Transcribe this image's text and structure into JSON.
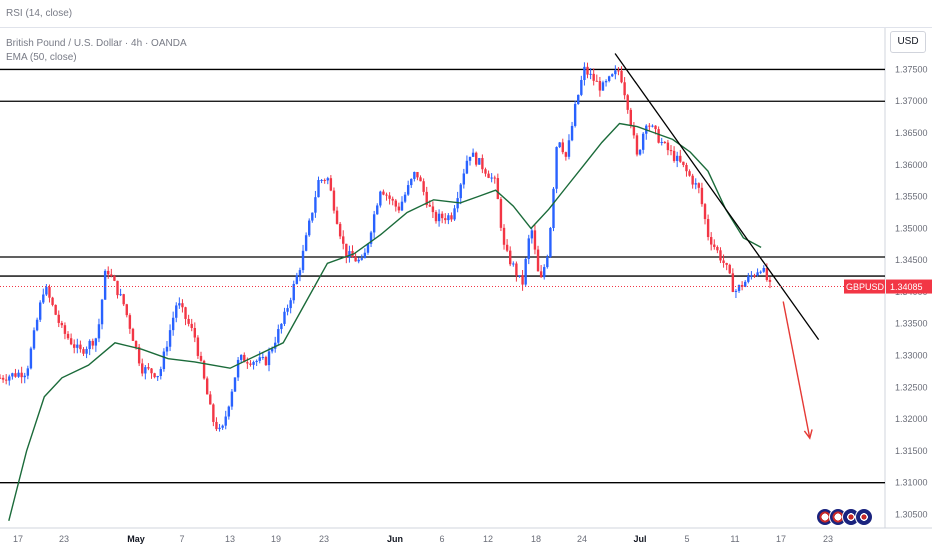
{
  "rsi_label": "RSI (14, close)",
  "legend": {
    "symbol_line": "British Pound / U.S. Dollar · 4h · OANDA",
    "ema_line": "EMA (50, close)"
  },
  "currency_button": "USD",
  "price_tag": {
    "symbol": "GBPUSD",
    "price": "1.34085"
  },
  "colors": {
    "up_candle": "#2962ff",
    "down_candle": "#f23645",
    "ema": "#1b6b3a",
    "trend_line": "#000000",
    "arrow": "#e53935",
    "price_tag_bg": "#f23645"
  },
  "chart_data": {
    "type": "candlestick",
    "symbol": "GBPUSD",
    "timeframe": "4h",
    "y_axis": {
      "ticks": [
        "1.37500",
        "1.37000",
        "1.36500",
        "1.36000",
        "1.35500",
        "1.35000",
        "1.34500",
        "1.34000",
        "1.33500",
        "1.33000",
        "1.32500",
        "1.32000",
        "1.31500",
        "1.31000",
        "1.30500"
      ],
      "range": [
        1.3035,
        1.379
      ]
    },
    "x_axis": {
      "ticks": [
        {
          "label": "17",
          "bold": false
        },
        {
          "label": "23",
          "bold": false
        },
        {
          "label": "May",
          "bold": true
        },
        {
          "label": "7",
          "bold": false
        },
        {
          "label": "13",
          "bold": false
        },
        {
          "label": "19",
          "bold": false
        },
        {
          "label": "23",
          "bold": false
        },
        {
          "label": "Jun",
          "bold": true
        },
        {
          "label": "6",
          "bold": false
        },
        {
          "label": "12",
          "bold": false
        },
        {
          "label": "18",
          "bold": false
        },
        {
          "label": "24",
          "bold": false
        },
        {
          "label": "Jul",
          "bold": true
        },
        {
          "label": "5",
          "bold": false
        },
        {
          "label": "11",
          "bold": false
        },
        {
          "label": "17",
          "bold": false
        },
        {
          "label": "23",
          "bold": false
        }
      ],
      "range": [
        0,
        1
      ]
    },
    "horizontal_levels": [
      1.375,
      1.37,
      1.3455,
      1.3425,
      1.31
    ],
    "price_path": [
      [
        0.0,
        1.3265
      ],
      [
        0.03,
        1.3275
      ],
      [
        0.05,
        1.341
      ],
      [
        0.07,
        1.334
      ],
      [
        0.09,
        1.3305
      ],
      [
        0.11,
        1.333
      ],
      [
        0.12,
        1.344
      ],
      [
        0.14,
        1.338
      ],
      [
        0.16,
        1.328
      ],
      [
        0.18,
        1.327
      ],
      [
        0.2,
        1.3385
      ],
      [
        0.22,
        1.333
      ],
      [
        0.24,
        1.32
      ],
      [
        0.25,
        1.3175
      ],
      [
        0.27,
        1.3295
      ],
      [
        0.3,
        1.329
      ],
      [
        0.32,
        1.3355
      ],
      [
        0.34,
        1.3445
      ],
      [
        0.36,
        1.3575
      ],
      [
        0.37,
        1.358
      ],
      [
        0.39,
        1.346
      ],
      [
        0.41,
        1.3445
      ],
      [
        0.43,
        1.3565
      ],
      [
        0.45,
        1.353
      ],
      [
        0.47,
        1.359
      ],
      [
        0.49,
        1.3515
      ],
      [
        0.51,
        1.352
      ],
      [
        0.53,
        1.362
      ],
      [
        0.55,
        1.359
      ],
      [
        0.56,
        1.357
      ],
      [
        0.57,
        1.3465
      ],
      [
        0.58,
        1.344
      ],
      [
        0.59,
        1.341
      ],
      [
        0.6,
        1.3505
      ],
      [
        0.61,
        1.341
      ],
      [
        0.62,
        1.347
      ],
      [
        0.63,
        1.365
      ],
      [
        0.64,
        1.361
      ],
      [
        0.65,
        1.369
      ],
      [
        0.66,
        1.375
      ],
      [
        0.68,
        1.372
      ],
      [
        0.7,
        1.375
      ],
      [
        0.71,
        1.369
      ],
      [
        0.72,
        1.361
      ],
      [
        0.73,
        1.367
      ],
      [
        0.75,
        1.363
      ],
      [
        0.77,
        1.36
      ],
      [
        0.79,
        1.356
      ],
      [
        0.8,
        1.349
      ],
      [
        0.82,
        1.344
      ],
      [
        0.83,
        1.34
      ],
      [
        0.845,
        1.342
      ],
      [
        0.86,
        1.344
      ],
      [
        0.87,
        1.3408
      ]
    ],
    "ema_path": [
      [
        0.01,
        1.304
      ],
      [
        0.03,
        1.315
      ],
      [
        0.05,
        1.3235
      ],
      [
        0.07,
        1.3265
      ],
      [
        0.1,
        1.3285
      ],
      [
        0.13,
        1.332
      ],
      [
        0.16,
        1.331
      ],
      [
        0.19,
        1.3295
      ],
      [
        0.22,
        1.329
      ],
      [
        0.24,
        1.3285
      ],
      [
        0.26,
        1.328
      ],
      [
        0.29,
        1.33
      ],
      [
        0.32,
        1.332
      ],
      [
        0.34,
        1.337
      ],
      [
        0.37,
        1.3445
      ],
      [
        0.4,
        1.346
      ],
      [
        0.43,
        1.349
      ],
      [
        0.46,
        1.3525
      ],
      [
        0.49,
        1.3545
      ],
      [
        0.52,
        1.354
      ],
      [
        0.54,
        1.355
      ],
      [
        0.56,
        1.356
      ],
      [
        0.58,
        1.3535
      ],
      [
        0.6,
        1.35
      ],
      [
        0.62,
        1.353
      ],
      [
        0.64,
        1.3565
      ],
      [
        0.66,
        1.36
      ],
      [
        0.68,
        1.3635
      ],
      [
        0.7,
        1.3665
      ],
      [
        0.72,
        1.366
      ],
      [
        0.74,
        1.365
      ],
      [
        0.76,
        1.364
      ],
      [
        0.78,
        1.362
      ],
      [
        0.8,
        1.359
      ],
      [
        0.82,
        1.353
      ],
      [
        0.84,
        1.3485
      ],
      [
        0.86,
        1.347
      ]
    ],
    "trend_line": [
      [
        0.695,
        1.3775
      ],
      [
        0.925,
        1.3325
      ]
    ],
    "projection_arrow": [
      [
        0.885,
        1.3385
      ],
      [
        0.915,
        1.317
      ]
    ]
  }
}
